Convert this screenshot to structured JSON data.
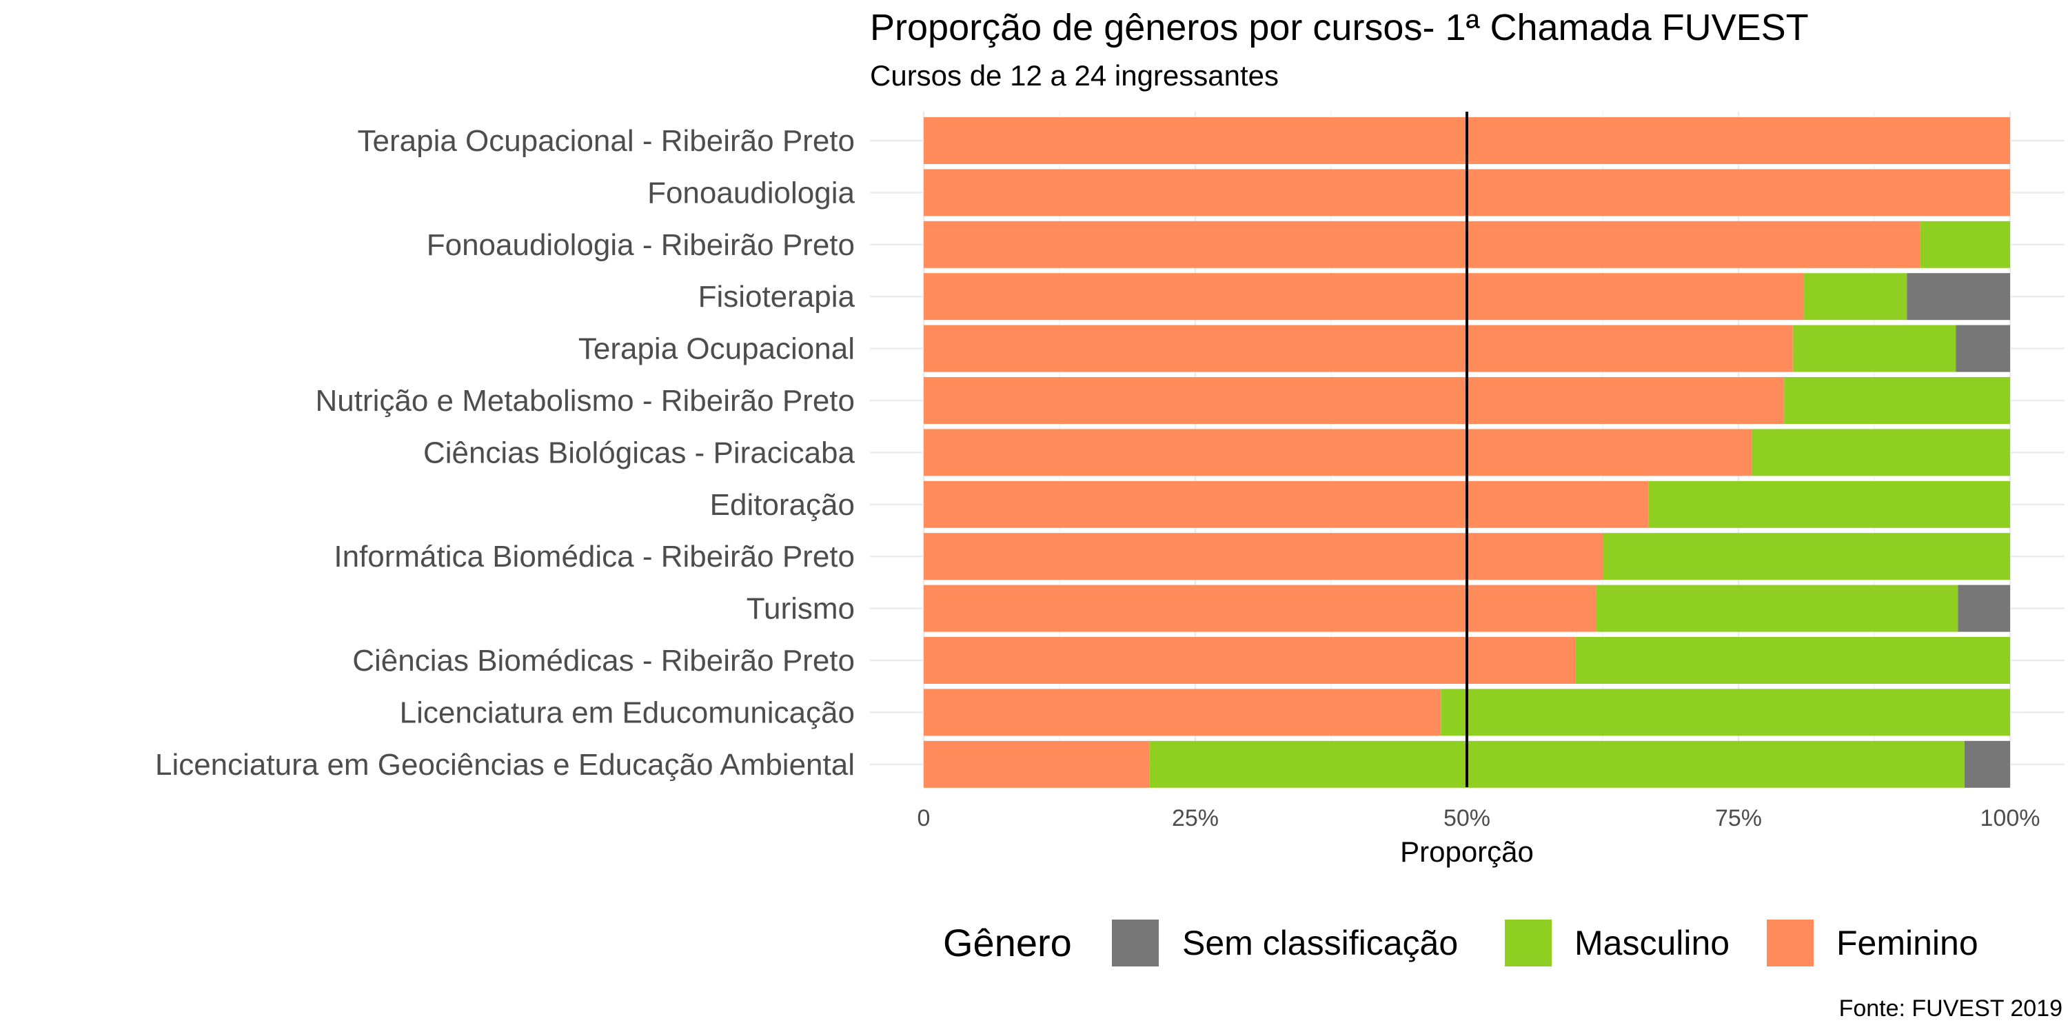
{
  "chart_data": {
    "type": "bar",
    "orientation": "horizontal",
    "stacked": "proportion",
    "title": "Proporção de gêneros por cursos- 1ª Chamada FUVEST",
    "subtitle": "Cursos de 12 a 24 ingressantes",
    "xlabel": "Proporção",
    "ylabel": "",
    "caption": "Fonte: FUVEST 2019",
    "xlim": [
      0,
      1
    ],
    "x_ticks": [
      0,
      0.25,
      0.5,
      0.75,
      1
    ],
    "x_tick_labels": [
      "0",
      "25%",
      "50%",
      "75%",
      "100%"
    ],
    "reference_line": 0.5,
    "grid": true,
    "legend": {
      "title": "Gênero",
      "position": "bottom",
      "entries": [
        "Sem classificação",
        "Masculino",
        "Feminino"
      ]
    },
    "colors": {
      "Feminino": "#FF8C5A",
      "Masculino": "#8ECF22",
      "Sem classificação": "#777777"
    },
    "categories": [
      "Terapia Ocupacional - Ribeirão Preto",
      "Fonoaudiologia",
      "Fonoaudiologia - Ribeirão Preto",
      "Fisioterapia",
      "Terapia Ocupacional",
      "Nutrição e Metabolismo - Ribeirão Preto",
      "Ciências Biológicas - Piracicaba",
      "Editoração",
      "Informática Biomédica - Ribeirão Preto",
      "Turismo",
      "Ciências Biomédicas - Ribeirão Preto",
      "Licenciatura em Educomunicação",
      "Licenciatura em Geociências e Educação Ambiental"
    ],
    "series": [
      {
        "name": "Feminino",
        "values": [
          1.0,
          1.0,
          0.917,
          0.81,
          0.8,
          0.792,
          0.762,
          0.667,
          0.625,
          0.619,
          0.6,
          0.476,
          0.208
        ]
      },
      {
        "name": "Masculino",
        "values": [
          0.0,
          0.0,
          0.083,
          0.095,
          0.15,
          0.208,
          0.238,
          0.333,
          0.375,
          0.333,
          0.4,
          0.524,
          0.75
        ]
      },
      {
        "name": "Sem classificação",
        "values": [
          0.0,
          0.0,
          0.0,
          0.095,
          0.05,
          0.0,
          0.0,
          0.0,
          0.0,
          0.048,
          0.0,
          0.0,
          0.042
        ]
      }
    ]
  }
}
